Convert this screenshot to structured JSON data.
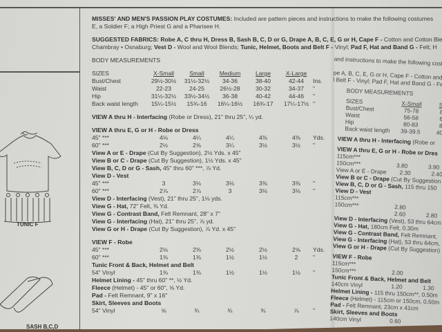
{
  "left_panel": {
    "tunic_caption": "TUNIC F",
    "sash_caption": "SASH B,C,D"
  },
  "main": {
    "intro_bold": "MISSES' AND MEN'S PASSION PLAY COSTUMES:",
    "intro_text": " Included are pattern pieces and instructions to make the following costumes",
    "intro_line2": "E, a Soldier F; a High Priest G and a Pharisee H.",
    "fabrics_line1": [
      {
        "bold": true,
        "text": "SUGGESTED FABRICS: Robe A, C thru H, Dress B, Sash B, C, D or G, Drape A, B, C, E, G or H, Cape F - "
      },
      {
        "bold": false,
        "text": "Cotton and Cotton Blends"
      }
    ],
    "fabrics_line2": [
      {
        "bold": false,
        "text": "Chambray • Osnaburg; "
      },
      {
        "bold": true,
        "text": "Vest D - "
      },
      {
        "bold": false,
        "text": "Wool and Wool Blends; "
      },
      {
        "bold": true,
        "text": "Tunic, Helmet, Boots and Belt F - "
      },
      {
        "bold": false,
        "text": "Vinyl; "
      },
      {
        "bold": true,
        "text": "Pad F, Hat and Band G - "
      },
      {
        "bold": false,
        "text": "Felt; H"
      }
    ],
    "body_heading": "BODY MEASUREMENTS",
    "sizes_label": "SIZES",
    "sizes": [
      "X-Small",
      "Small",
      "Medium",
      "Large",
      "X-Large"
    ],
    "measurements": [
      {
        "label": "Bust/Chest",
        "values": [
          "29½-30½",
          "31½-32½",
          "34-36",
          "38-40",
          "42-44"
        ],
        "unit": "Ins."
      },
      {
        "label": "Waist",
        "values": [
          "22-23",
          "24-25",
          "26½-28",
          "30-32",
          "34-37"
        ],
        "unit": "\""
      },
      {
        "label": "Hip",
        "values": [
          "31½-32½",
          "33½-34½",
          "36-38",
          "40-42",
          "44-46"
        ],
        "unit": "\""
      },
      {
        "label": "Back waist length",
        "values": [
          "15¼-15½",
          "15¾-16",
          "16¼-16½",
          "16¾-17",
          "17¼-17½"
        ],
        "unit": "\""
      }
    ],
    "lines": [
      {
        "type": "note",
        "gap": true,
        "bold": "VIEW A thru H - Interfacing",
        "text": " (Robe or Dress), 21\" thru 25\", ¼ yd."
      },
      {
        "type": "heading",
        "gap": true,
        "text": "VIEW A thru E, G or H - Robe or Dress"
      },
      {
        "type": "row",
        "label": "45\" ***",
        "values": [
          "4⅛",
          "4¼",
          "4¼",
          "4⅜",
          "4⅜"
        ],
        "unit": "Yds."
      },
      {
        "type": "row",
        "label": "60\" ***",
        "values": [
          "2½",
          "2⅝",
          "3¼",
          "3½",
          "3½"
        ],
        "unit": "\""
      },
      {
        "type": "note",
        "bold": "View A or E - Drape",
        "text": " (Cut By Suggestion), 2½ Yds. x 45\""
      },
      {
        "type": "note",
        "bold": "View B or C - Drape",
        "text": " (Cut By Suggestion), 1½ Yds. x 45\""
      },
      {
        "type": "note",
        "bold": "View B, C, D or G - Sash,",
        "text": " 45\" thru 60\" ***, ⅞ Yd."
      },
      {
        "type": "heading",
        "text": "View D - Vest"
      },
      {
        "type": "row",
        "label": "45\" ***",
        "values": [
          "3",
          "3⅛",
          "3⅛",
          "3⅜",
          "3⅜"
        ],
        "unit": "\""
      },
      {
        "type": "row",
        "label": "60\" ***",
        "values": [
          "2⅞",
          "2⅞",
          "3",
          "3⅛",
          "3⅛"
        ],
        "unit": "\""
      },
      {
        "type": "note",
        "bold": "View D - Interfacing",
        "text": " (Vest), 21\" thru 25\", 1⅛ yds."
      },
      {
        "type": "note",
        "bold": "View G - Hat,",
        "text": " 72\" Felt, ⅜ Yd."
      },
      {
        "type": "note",
        "bold": "View G - Contrast Band,",
        "text": " Felt Remnant, 28\" x 7\""
      },
      {
        "type": "note",
        "bold": "View G - Interfacing",
        "text": " (Hat), 21\" thru 25\", ⅞ yd."
      },
      {
        "type": "note",
        "bold": "View G or H - Drape",
        "text": " (Cut By Suggestion), ⅞ Yd. x 45\""
      },
      {
        "type": "heading",
        "gap": true,
        "text": "VIEW F - Robe"
      },
      {
        "type": "row",
        "label": "45\" ***",
        "values": [
          "2⅛",
          "2⅜",
          "2½",
          "2½",
          "2⅝"
        ],
        "unit": "Yds."
      },
      {
        "type": "row",
        "label": "60\" ***",
        "values": [
          "1⅜",
          "1⅜",
          "1½",
          "1½",
          "2"
        ],
        "unit": "\""
      },
      {
        "type": "heading",
        "text": "Tunic Front & Back, Helmet and Belt"
      },
      {
        "type": "row",
        "label": "54\" Vinyl",
        "values": [
          "1⅜",
          "1⅜",
          "1½",
          "1½",
          "1½"
        ],
        "unit": "\""
      },
      {
        "type": "note",
        "bold": "Helmet Lining -",
        "text": " 45\" thru 60\" **, ½ Yd."
      },
      {
        "type": "note",
        "bold": "Fleece",
        "text": " (Helmet) - 45\" or 60\", ⅝ Yd."
      },
      {
        "type": "note",
        "bold": "Pad -",
        "text": " Felt Remnant, 9\" x 16\""
      },
      {
        "type": "heading",
        "text": "Skirt, Sleeves and Boots"
      },
      {
        "type": "row",
        "label": "54\" Vinyl",
        "values": [
          "⅝",
          "¾",
          "¾",
          "¾",
          "⅞"
        ],
        "unit": "\""
      }
    ]
  },
  "right_panel": {
    "lines_top": [
      "and instructions to make the following costumes",
      "",
      "pe A, B, C, E, G or H, Cape F - Cotton and C",
      "l Belt F - Vinyl; Pad F, Hat and Band G - Felt; H"
    ],
    "body_heading": "BODY MEASUREMENTS",
    "sizes_label": "SIZES",
    "sizes": [
      "X-Small",
      "Sm"
    ],
    "measurements": [
      {
        "label": "Bust/Chest",
        "values": [
          "75-78",
          "80"
        ]
      },
      {
        "label": "Waist",
        "values": [
          "56-58",
          "61"
        ]
      },
      {
        "label": "Hip",
        "values": [
          "80-83",
          "85"
        ]
      },
      {
        "label": "Back waist length",
        "values": [
          "39-39.5",
          "40-4"
        ]
      }
    ],
    "lines": [
      {
        "type": "note",
        "gap": true,
        "bold": "VIEW A thru H - Interfacing",
        "text": " (Robe or"
      },
      {
        "type": "heading",
        "gap": true,
        "text": "VIEW A thru E, G or H - Robe or Dres"
      },
      {
        "type": "row",
        "label": "115cm***",
        "values": [
          "",
          ""
        ]
      },
      {
        "type": "row",
        "label": "150cm***",
        "values": [
          "3.80",
          "3.90"
        ]
      },
      {
        "type": "row",
        "label": "View A or E - Drape",
        "values": [
          "2.30",
          "2.40"
        ]
      },
      {
        "type": "note",
        "bold": "View B or C - Drape",
        "text": " (Cut By Suggestion"
      },
      {
        "type": "note",
        "bold": "View B, C, D or G - Sash,",
        "text": " 115 thru 150"
      },
      {
        "type": "heading",
        "text": "View D - Vest"
      },
      {
        "type": "row",
        "label": "115cm***",
        "values": [
          "",
          ""
        ]
      },
      {
        "type": "row",
        "label": "150cm***",
        "values": [
          "2.80",
          ""
        ]
      },
      {
        "type": "row",
        "label": "",
        "values": [
          "2.60",
          "2.80"
        ]
      },
      {
        "type": "note",
        "bold": "View D - Interfacing",
        "text": " (Vest), 53 thru 64cm"
      },
      {
        "type": "note",
        "bold": "View G - Hat,",
        "text": " 180cm Felt, 0.30m"
      },
      {
        "type": "note",
        "bold": "View G - Contrast Band,",
        "text": " Felt Remnant,"
      },
      {
        "type": "note",
        "bold": "View G - Interfacing",
        "text": " (Hat), 53 thru 64cm,"
      },
      {
        "type": "note",
        "bold": "View G or H - Drape",
        "text": " (Cut By Suggestion)"
      },
      {
        "type": "heading",
        "gap": true,
        "text": "VIEW F - Robe"
      },
      {
        "type": "row",
        "label": "115cm***",
        "values": [
          "",
          ""
        ]
      },
      {
        "type": "row",
        "label": "150cm***",
        "values": [
          "2.00",
          ""
        ]
      },
      {
        "type": "row",
        "label": "Tunic Front & Back, Helmet and Belt",
        "values": []
      },
      {
        "type": "row",
        "label": "140cm Vinyl",
        "values": [
          "1.20",
          "1.30"
        ]
      },
      {
        "type": "note",
        "bold": "Helmet Lining -",
        "text": " 115 thru 150cm**, 0.50m"
      },
      {
        "type": "note",
        "bold": "Fleece",
        "text": " (Helmet) - 115cm or 150cm, 0.50m"
      },
      {
        "type": "note",
        "bold": "Pad -",
        "text": " Felt Remnant, 23cm x 41cm"
      },
      {
        "type": "heading",
        "text": "Skirt, Sleeves and Boots"
      },
      {
        "type": "row",
        "label": "140cm Vinyl",
        "values": [
          "0.60",
          ""
        ]
      }
    ]
  },
  "colors": {
    "paper": "#d8d8d4",
    "ink": "#3a3a3a",
    "floor": "#6e5440"
  }
}
